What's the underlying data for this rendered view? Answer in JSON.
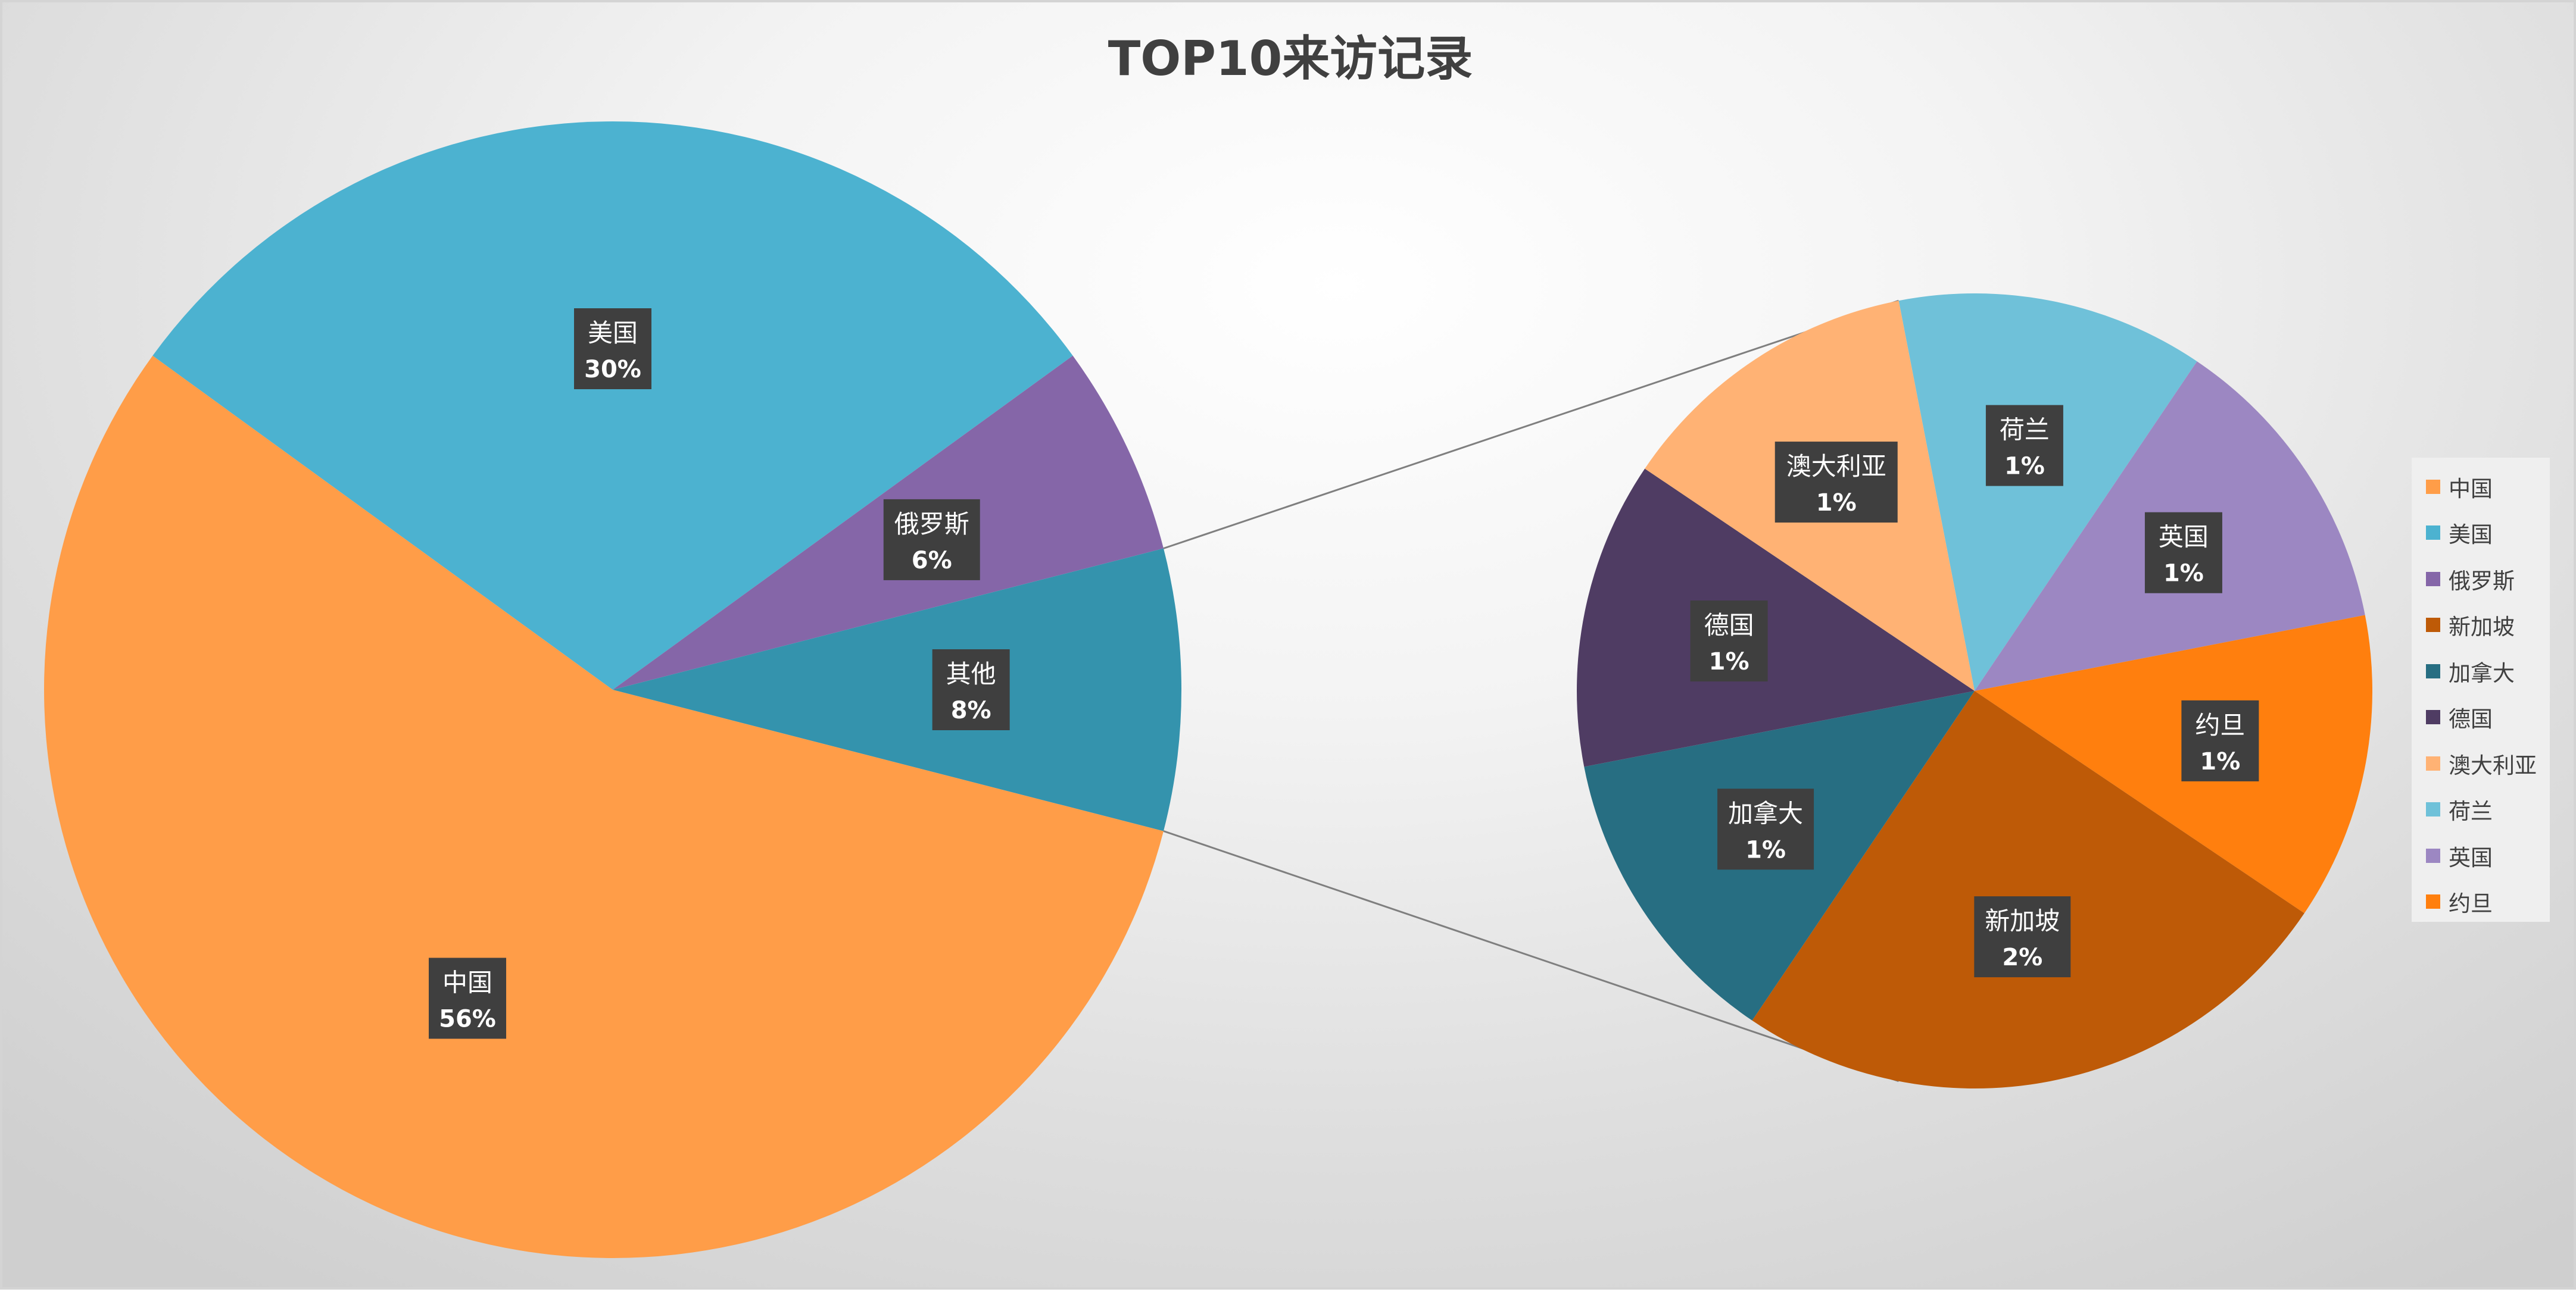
{
  "chart_data": {
    "type": "pie",
    "subtype": "pie-of-pie",
    "title": "TOP10来访记录",
    "primary_pie": {
      "slices": [
        {
          "name": "中国",
          "value": 56,
          "label": "56%",
          "color": "#FF9D48"
        },
        {
          "name": "美国",
          "value": 30,
          "label": "30%",
          "color": "#4CB2D0"
        },
        {
          "name": "俄罗斯",
          "value": 6,
          "label": "6%",
          "color": "#8566A8"
        },
        {
          "name": "其他",
          "value": 8,
          "label": "8%",
          "color": "#3493AD"
        }
      ]
    },
    "secondary_pie": {
      "slices": [
        {
          "name": "荷兰",
          "value": 1,
          "label": "1%",
          "color": "#6FC1D9"
        },
        {
          "name": "英国",
          "value": 1,
          "label": "1%",
          "color": "#9C87C2"
        },
        {
          "name": "约旦",
          "value": 1,
          "label": "1%",
          "color": "#FF7F0E"
        },
        {
          "name": "新加坡",
          "value": 2,
          "label": "2%",
          "color": "#BE5A07"
        },
        {
          "name": "加拿大",
          "value": 1,
          "label": "1%",
          "color": "#276E82"
        },
        {
          "name": "德国",
          "value": 1,
          "label": "1%",
          "color": "#4F3C63"
        },
        {
          "name": "澳大利亚",
          "value": 1,
          "label": "1%",
          "color": "#FFB274"
        }
      ]
    },
    "legend": {
      "position": "right",
      "items": [
        {
          "name": "中国",
          "color": "#FF9D48"
        },
        {
          "name": "美国",
          "color": "#4CB2D0"
        },
        {
          "name": "俄罗斯",
          "color": "#8566A8"
        },
        {
          "name": "新加坡",
          "color": "#BE5A07"
        },
        {
          "name": "加拿大",
          "color": "#276E82"
        },
        {
          "name": "德国",
          "color": "#4F3C63"
        },
        {
          "name": "澳大利亚",
          "color": "#FFB274"
        },
        {
          "name": "荷兰",
          "color": "#6FC1D9"
        },
        {
          "name": "英国",
          "color": "#9C87C2"
        },
        {
          "name": "约旦",
          "color": "#FF7F0E"
        }
      ]
    }
  }
}
